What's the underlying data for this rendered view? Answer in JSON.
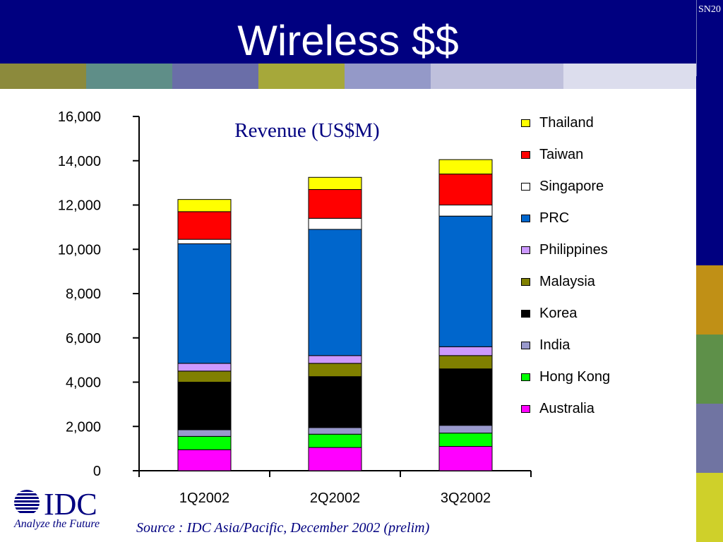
{
  "slide": {
    "title": "Wireless $$",
    "corner_code": "SN20",
    "source": "Source : IDC Asia/Pacific, December 2002 (prelim)",
    "logo": {
      "name": "IDC",
      "tagline": "Analyze the Future"
    }
  },
  "colors": {
    "header_bg": "#000080",
    "title_text": "#ffffff",
    "source_text": "#000080",
    "stripe": [
      "#8c8a3c",
      "#5f8e88",
      "#6a6ea8",
      "#a6a83a",
      "#9499c8",
      "#bfc0dc",
      "#dcdded"
    ],
    "side_blocks": [
      "#c09016",
      "#5e9049",
      "#7074a2",
      "#cfd02a"
    ]
  },
  "chart_data": {
    "type": "bar",
    "stacked": true,
    "title": "Revenue (US$M)",
    "categories": [
      "1Q2002",
      "2Q2002",
      "3Q2002"
    ],
    "ylim": [
      0,
      16000
    ],
    "yticks": [
      "0",
      "2,000",
      "4,000",
      "6,000",
      "8,000",
      "10,000",
      "12,000",
      "14,000",
      "16,000"
    ],
    "legend_position": "right",
    "series": [
      {
        "name": "Australia",
        "color": "#ff00ff",
        "values": [
          950,
          1050,
          1100
        ]
      },
      {
        "name": "Hong Kong",
        "color": "#00ff00",
        "values": [
          600,
          600,
          600
        ]
      },
      {
        "name": "India",
        "color": "#9999cc",
        "values": [
          300,
          300,
          350
        ]
      },
      {
        "name": "Korea",
        "color": "#000000",
        "values": [
          2150,
          2300,
          2550
        ]
      },
      {
        "name": "Malaysia",
        "color": "#808000",
        "values": [
          500,
          600,
          600
        ]
      },
      {
        "name": "Philippines",
        "color": "#cc99ff",
        "values": [
          350,
          350,
          400
        ]
      },
      {
        "name": "PRC",
        "color": "#0066cc",
        "values": [
          5400,
          5700,
          5900
        ]
      },
      {
        "name": "Singapore",
        "color": "#ffffff",
        "values": [
          200,
          500,
          500
        ]
      },
      {
        "name": "Taiwan",
        "color": "#ff0000",
        "values": [
          1250,
          1300,
          1400
        ]
      },
      {
        "name": "Thailand",
        "color": "#ffff00",
        "values": [
          550,
          550,
          650
        ]
      }
    ]
  }
}
